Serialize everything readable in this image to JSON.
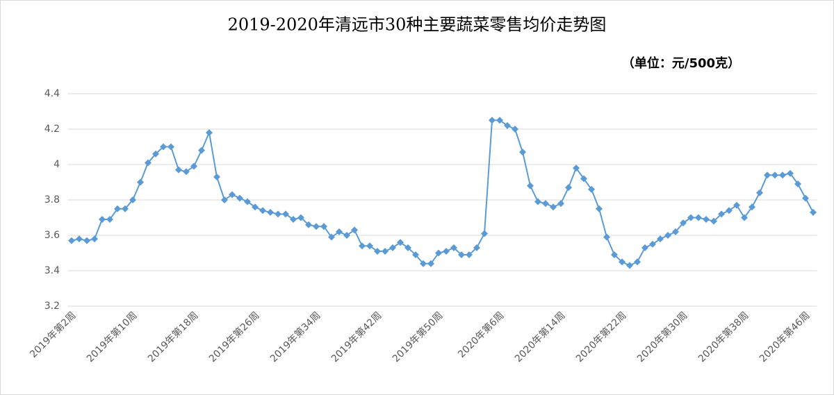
{
  "chart_data": {
    "type": "line",
    "title": "2019-2020年清远市30种主要蔬菜零售均价走势图",
    "subtitle": "（单位：元/500克）",
    "categories": [
      "2019年第2周",
      null,
      null,
      null,
      null,
      null,
      null,
      null,
      "2019年第10周",
      null,
      null,
      null,
      null,
      null,
      null,
      null,
      "2019年第18周",
      null,
      null,
      null,
      null,
      null,
      null,
      null,
      "2019年第26周",
      null,
      null,
      null,
      null,
      null,
      null,
      null,
      "2019年第34周",
      null,
      null,
      null,
      null,
      null,
      null,
      null,
      "2019年第42周",
      null,
      null,
      null,
      null,
      null,
      null,
      null,
      "2019年第50周",
      null,
      null,
      null,
      null,
      null,
      null,
      null,
      "2020年第6周",
      null,
      null,
      null,
      null,
      null,
      null,
      null,
      "2020年第14周",
      null,
      null,
      null,
      null,
      null,
      null,
      null,
      "2020年第22周",
      null,
      null,
      null,
      null,
      null,
      null,
      null,
      "2020年第30周",
      null,
      null,
      null,
      null,
      null,
      null,
      null,
      "2020年第38周",
      null,
      null,
      null,
      null,
      null,
      null,
      null,
      "2020年第46周",
      null
    ],
    "values": [
      3.57,
      3.58,
      3.57,
      3.58,
      3.69,
      3.69,
      3.75,
      3.75,
      3.8,
      3.9,
      4.01,
      4.06,
      4.1,
      4.1,
      3.97,
      3.96,
      3.99,
      4.08,
      4.18,
      3.93,
      3.8,
      3.83,
      3.81,
      3.79,
      3.76,
      3.74,
      3.73,
      3.72,
      3.72,
      3.69,
      3.7,
      3.66,
      3.65,
      3.65,
      3.59,
      3.62,
      3.6,
      3.63,
      3.54,
      3.54,
      3.51,
      3.51,
      3.53,
      3.56,
      3.53,
      3.49,
      3.44,
      3.44,
      3.5,
      3.51,
      3.53,
      3.49,
      3.49,
      3.53,
      3.61,
      4.25,
      4.25,
      4.22,
      4.2,
      4.07,
      3.88,
      3.79,
      3.78,
      3.76,
      3.78,
      3.87,
      3.98,
      3.92,
      3.86,
      3.75,
      3.59,
      3.49,
      3.45,
      3.43,
      3.45,
      3.53,
      3.55,
      3.58,
      3.6,
      3.62,
      3.67,
      3.7,
      3.7,
      3.69,
      3.68,
      3.72,
      3.74,
      3.77,
      3.7,
      3.76,
      3.84,
      3.94,
      3.94,
      3.94,
      3.95,
      3.89,
      3.81,
      3.73
    ],
    "color": "#5b9bd5",
    "ylim": [
      3.2,
      4.4
    ],
    "yticks": [
      3.2,
      3.4,
      3.6,
      3.8,
      4,
      4.2,
      4.4
    ],
    "grid": true
  }
}
